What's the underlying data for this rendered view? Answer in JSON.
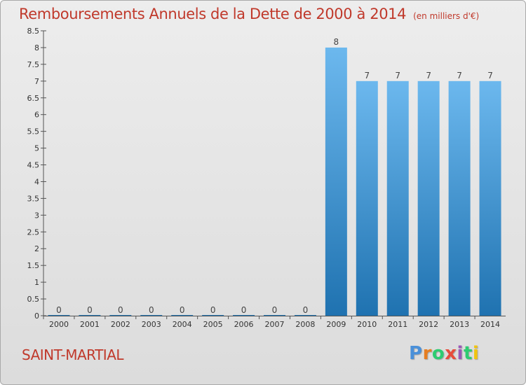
{
  "title": "Remboursements Annuels de la Dette de 2000 à 2014",
  "title_unit": "(en milliers d'€)",
  "place": "SAINT-MARTIAL",
  "logo": {
    "letters": [
      "P",
      "r",
      "o",
      "x",
      "i",
      "t",
      "i"
    ],
    "colors": [
      "#4a90d9",
      "#e67e22",
      "#2ecc71",
      "#e74c3c",
      "#9b59b6",
      "#2ecc71",
      "#f1c40f"
    ]
  },
  "colors": {
    "title": "#c0392b",
    "bar_light": "#6cb8ee",
    "bar_dark": "#1f72b0"
  },
  "chart_data": {
    "type": "bar",
    "categories": [
      "2000",
      "2001",
      "2002",
      "2003",
      "2004",
      "2005",
      "2006",
      "2007",
      "2008",
      "2009",
      "2010",
      "2011",
      "2012",
      "2013",
      "2014"
    ],
    "values": [
      0,
      0,
      0,
      0,
      0,
      0,
      0,
      0,
      0,
      8,
      7,
      7,
      7,
      7,
      7
    ],
    "data_labels": [
      "0",
      "0",
      "0",
      "0",
      "0",
      "0",
      "0",
      "0",
      "0",
      "8",
      "7",
      "7",
      "7",
      "7",
      "7"
    ],
    "y_ticks": [
      {
        "v": 0,
        "label": "0"
      },
      {
        "v": 0.5,
        "label": "0.5"
      },
      {
        "v": 1,
        "label": "1"
      },
      {
        "v": 1.5,
        "label": "1.5"
      },
      {
        "v": 2,
        "label": "2"
      },
      {
        "v": 2.5,
        "label": "2.5"
      },
      {
        "v": 3,
        "label": "3"
      },
      {
        "v": 3.5,
        "label": "3.5"
      },
      {
        "v": 4,
        "label": "4"
      },
      {
        "v": 4.5,
        "label": "4.5"
      },
      {
        "v": 5,
        "label": "5"
      },
      {
        "v": 5.5,
        "label": "5.5"
      },
      {
        "v": 6,
        "label": "6"
      },
      {
        "v": 6.5,
        "label": "6.5"
      },
      {
        "v": 7,
        "label": "7"
      },
      {
        "v": 7.5,
        "label": "7.5"
      },
      {
        "v": 8,
        "label": "8"
      },
      {
        "v": 8.5,
        "label": "8.5"
      }
    ],
    "ylim": [
      0,
      8.5
    ],
    "grid": false,
    "legend": "none"
  }
}
